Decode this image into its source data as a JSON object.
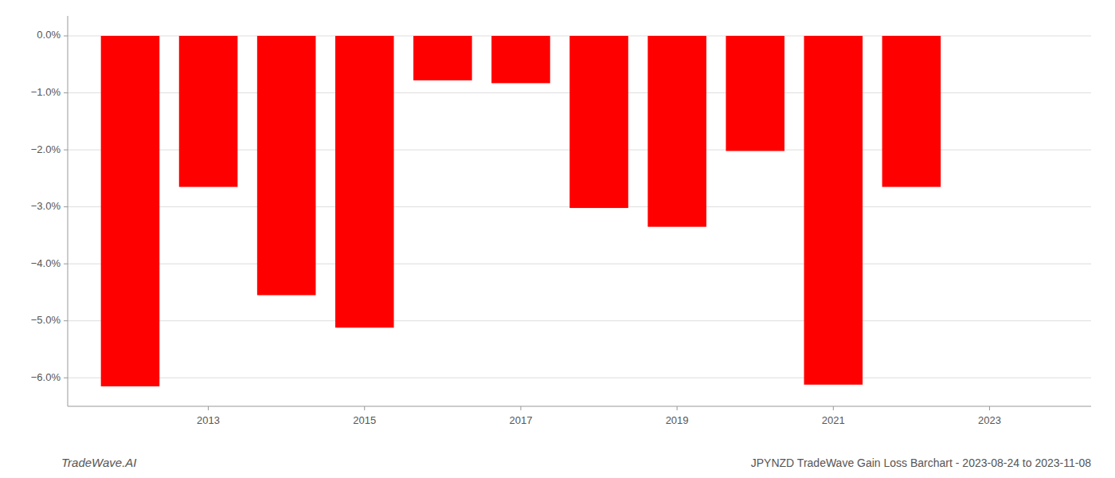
{
  "chart_data": {
    "type": "bar",
    "x": [
      2012,
      2013,
      2014,
      2015,
      2016,
      2017,
      2018,
      2019,
      2020,
      2021,
      2022
    ],
    "values": [
      -6.15,
      -2.65,
      -4.55,
      -5.12,
      -0.78,
      -0.83,
      -3.02,
      -3.35,
      -2.02,
      -6.12,
      -2.65
    ],
    "color": "#ff0000",
    "xlim": [
      2011.2,
      2024.3
    ],
    "xticks": [
      2013,
      2015,
      2017,
      2019,
      2021,
      2023
    ],
    "ylim": [
      -6.5,
      0.35
    ],
    "yticks": [
      {
        "value": -6,
        "label": "−6.0%"
      },
      {
        "value": -5,
        "label": "−5.0%"
      },
      {
        "value": -4,
        "label": "−4.0%"
      },
      {
        "value": -3,
        "label": "−3.0%"
      },
      {
        "value": -2,
        "label": "−2.0%"
      },
      {
        "value": -1,
        "label": "−1.0%"
      },
      {
        "value": 0,
        "label": "0.0%"
      }
    ],
    "grid": true,
    "annotations": [
      "TradeWave.AI",
      "JPYNZD TradeWave Gain Loss Barchart - 2023-08-24 to 2023-11-08"
    ]
  }
}
